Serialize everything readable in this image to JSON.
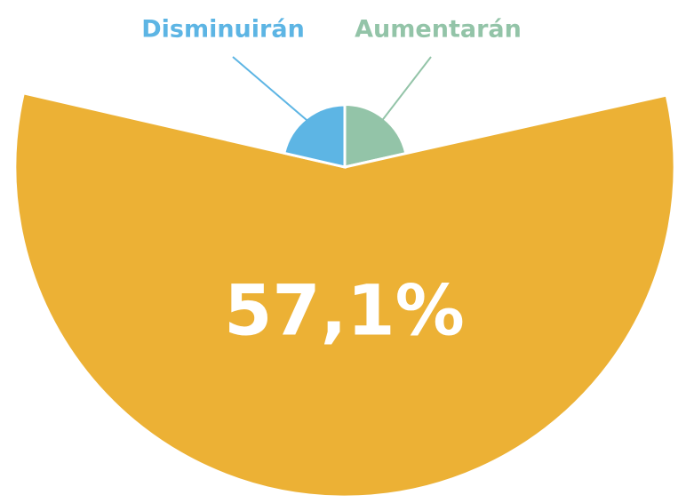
{
  "chart_data": {
    "type": "pie",
    "categories": [
      "Aumentarán",
      null,
      "Disminuirán"
    ],
    "values": [
      21.5,
      57.1,
      21.4
    ],
    "value_labels": [
      null,
      "57,1%",
      null
    ],
    "colors": [
      "#93c4a8",
      "#ecb135",
      "#5db5e4"
    ]
  }
}
